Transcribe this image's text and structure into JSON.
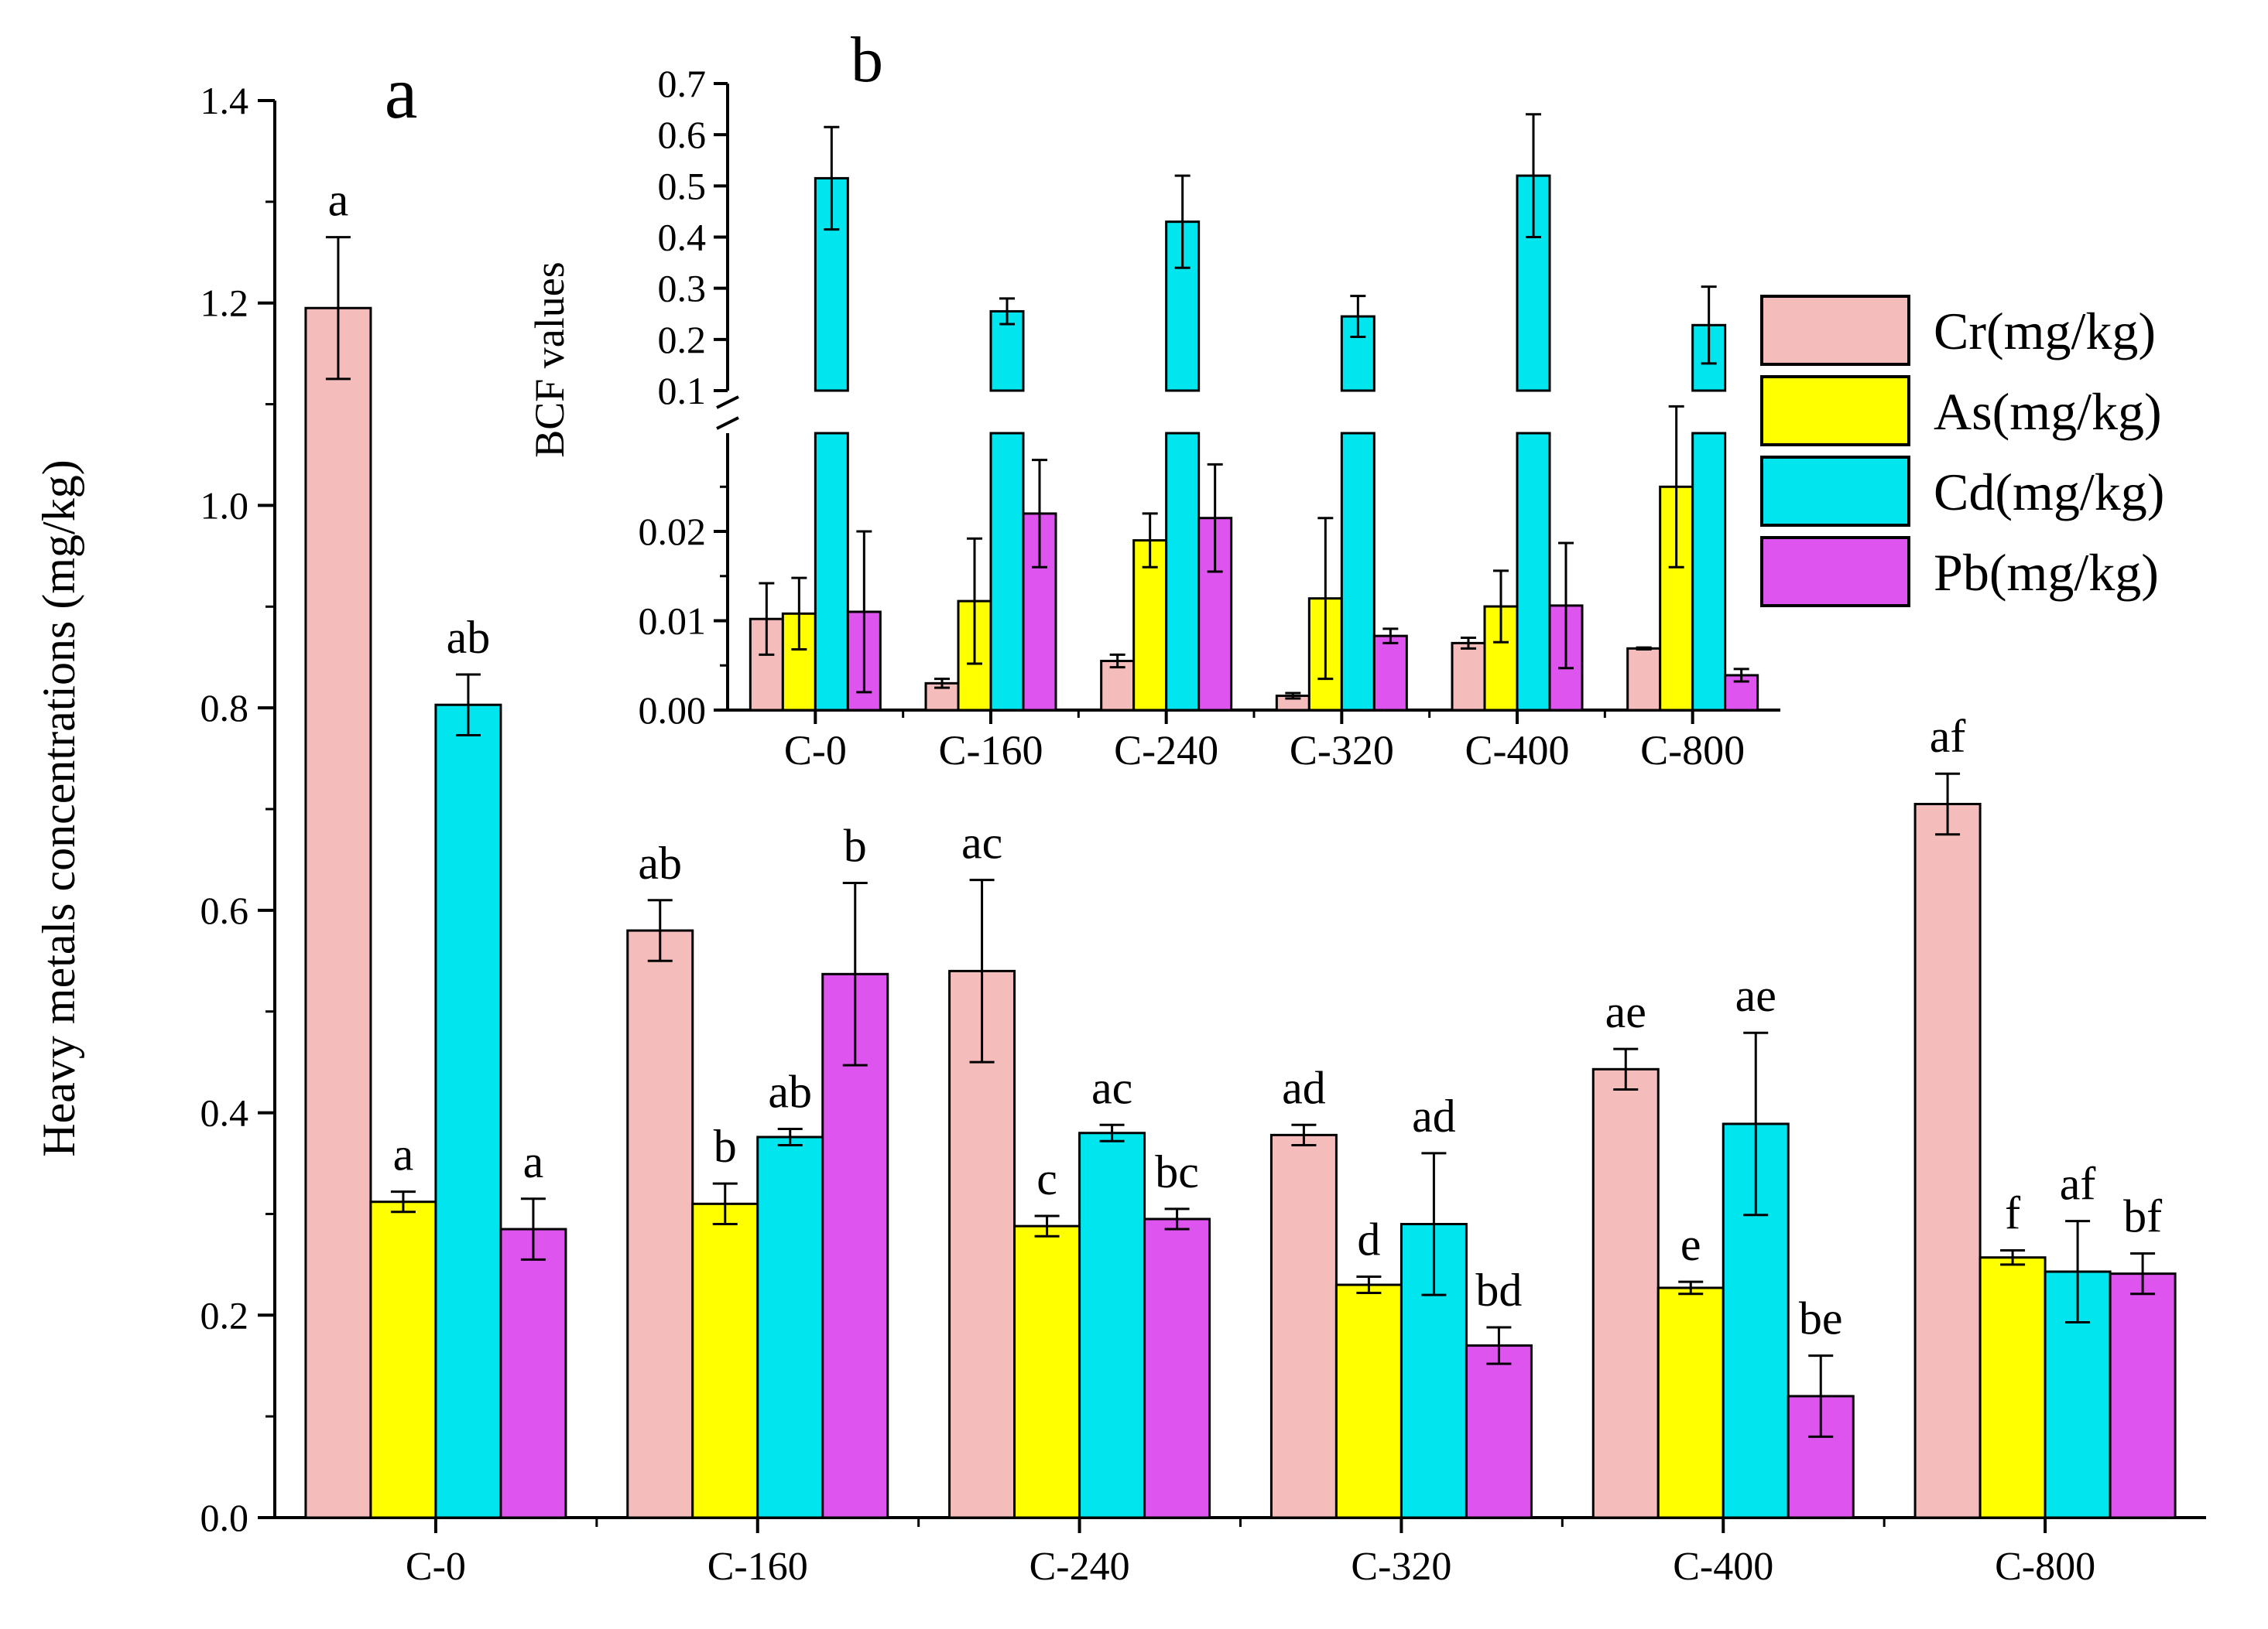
{
  "colors": {
    "Cr": "#f5bcbc",
    "As": "#ffff00",
    "Cd": "#00e5ee",
    "Pb": "#dd55ee"
  },
  "chart_data": [
    {
      "panel_label": "a",
      "type": "bar",
      "categories": [
        "C-0",
        "C-160",
        "C-240",
        "C-320",
        "C-400",
        "C-800"
      ],
      "ylabel": "Heavy metals concentrations (mg/kg)",
      "ylim": [
        0,
        1.4
      ],
      "yticks": [
        "0.0",
        "0.2",
        "0.4",
        "0.6",
        "0.8",
        "1.0",
        "1.2",
        "1.4"
      ],
      "series": [
        {
          "name": "Cr(mg/kg)",
          "values": [
            1.195,
            0.58,
            0.54,
            0.378,
            0.443,
            0.705
          ],
          "errors": [
            0.07,
            0.03,
            0.09,
            0.01,
            0.02,
            0.03
          ],
          "letters": [
            "a",
            "ab",
            "ac",
            "ad",
            "ae",
            "af"
          ]
        },
        {
          "name": "As(mg/kg)",
          "values": [
            0.312,
            0.31,
            0.288,
            0.23,
            0.227,
            0.257
          ],
          "errors": [
            0.01,
            0.02,
            0.01,
            0.008,
            0.006,
            0.007
          ],
          "letters": [
            "a",
            "b",
            "c",
            "d",
            "e",
            "f"
          ]
        },
        {
          "name": "Cd(mg/kg)",
          "values": [
            0.803,
            0.376,
            0.38,
            0.29,
            0.389,
            0.243
          ],
          "errors": [
            0.03,
            0.008,
            0.008,
            0.07,
            0.09,
            0.05
          ],
          "letters": [
            "ab",
            "ab",
            "ac",
            "ad",
            "ae",
            "af"
          ]
        },
        {
          "name": "Pb(mg/kg)",
          "values": [
            0.285,
            0.537,
            0.295,
            0.17,
            0.12,
            0.241
          ],
          "errors": [
            0.03,
            0.09,
            0.01,
            0.018,
            0.04,
            0.02
          ],
          "letters": [
            "a",
            "b",
            "bc",
            "bd",
            "be",
            "bf"
          ]
        }
      ],
      "legend": "top-right"
    },
    {
      "panel_label": "b",
      "type": "bar",
      "categories": [
        "C-0",
        "C-160",
        "C-240",
        "C-320",
        "C-400",
        "C-800"
      ],
      "ylabel": "BCF values",
      "broken_axis": {
        "lower_ylim": [
          0,
          0.031
        ],
        "upper_ylim": [
          0.1,
          0.7
        ]
      },
      "lower_ticks": [
        "0.00",
        "0.01",
        "0.02"
      ],
      "upper_ticks": [
        "0.1",
        "0.2",
        "0.3",
        "0.4",
        "0.5",
        "0.6",
        "0.7"
      ],
      "series": [
        {
          "name": "Cr(mg/kg)",
          "values": [
            0.0102,
            0.003,
            0.0055,
            0.0016,
            0.0075,
            0.0069
          ],
          "errors": [
            0.004,
            0.0005,
            0.0007,
            0.0003,
            0.0006,
            0.0001
          ]
        },
        {
          "name": "As(mg/kg)",
          "values": [
            0.0108,
            0.0122,
            0.019,
            0.0125,
            0.0116,
            0.025
          ],
          "errors": [
            0.004,
            0.007,
            0.003,
            0.009,
            0.004,
            0.009
          ]
        },
        {
          "name": "Cd(mg/kg)",
          "values": [
            0.515,
            0.255,
            0.43,
            0.245,
            0.52,
            0.228
          ],
          "errors": [
            0.1,
            0.025,
            0.09,
            0.04,
            0.12,
            0.075
          ]
        },
        {
          "name": "Pb(mg/kg)",
          "values": [
            0.011,
            0.022,
            0.0215,
            0.0083,
            0.0117,
            0.0039
          ],
          "errors": [
            0.009,
            0.006,
            0.006,
            0.0008,
            0.007,
            0.0007
          ]
        }
      ]
    }
  ],
  "legend": {
    "items": [
      "Cr(mg/kg)",
      "As(mg/kg)",
      "Cd(mg/kg)",
      "Pb(mg/kg)"
    ]
  }
}
